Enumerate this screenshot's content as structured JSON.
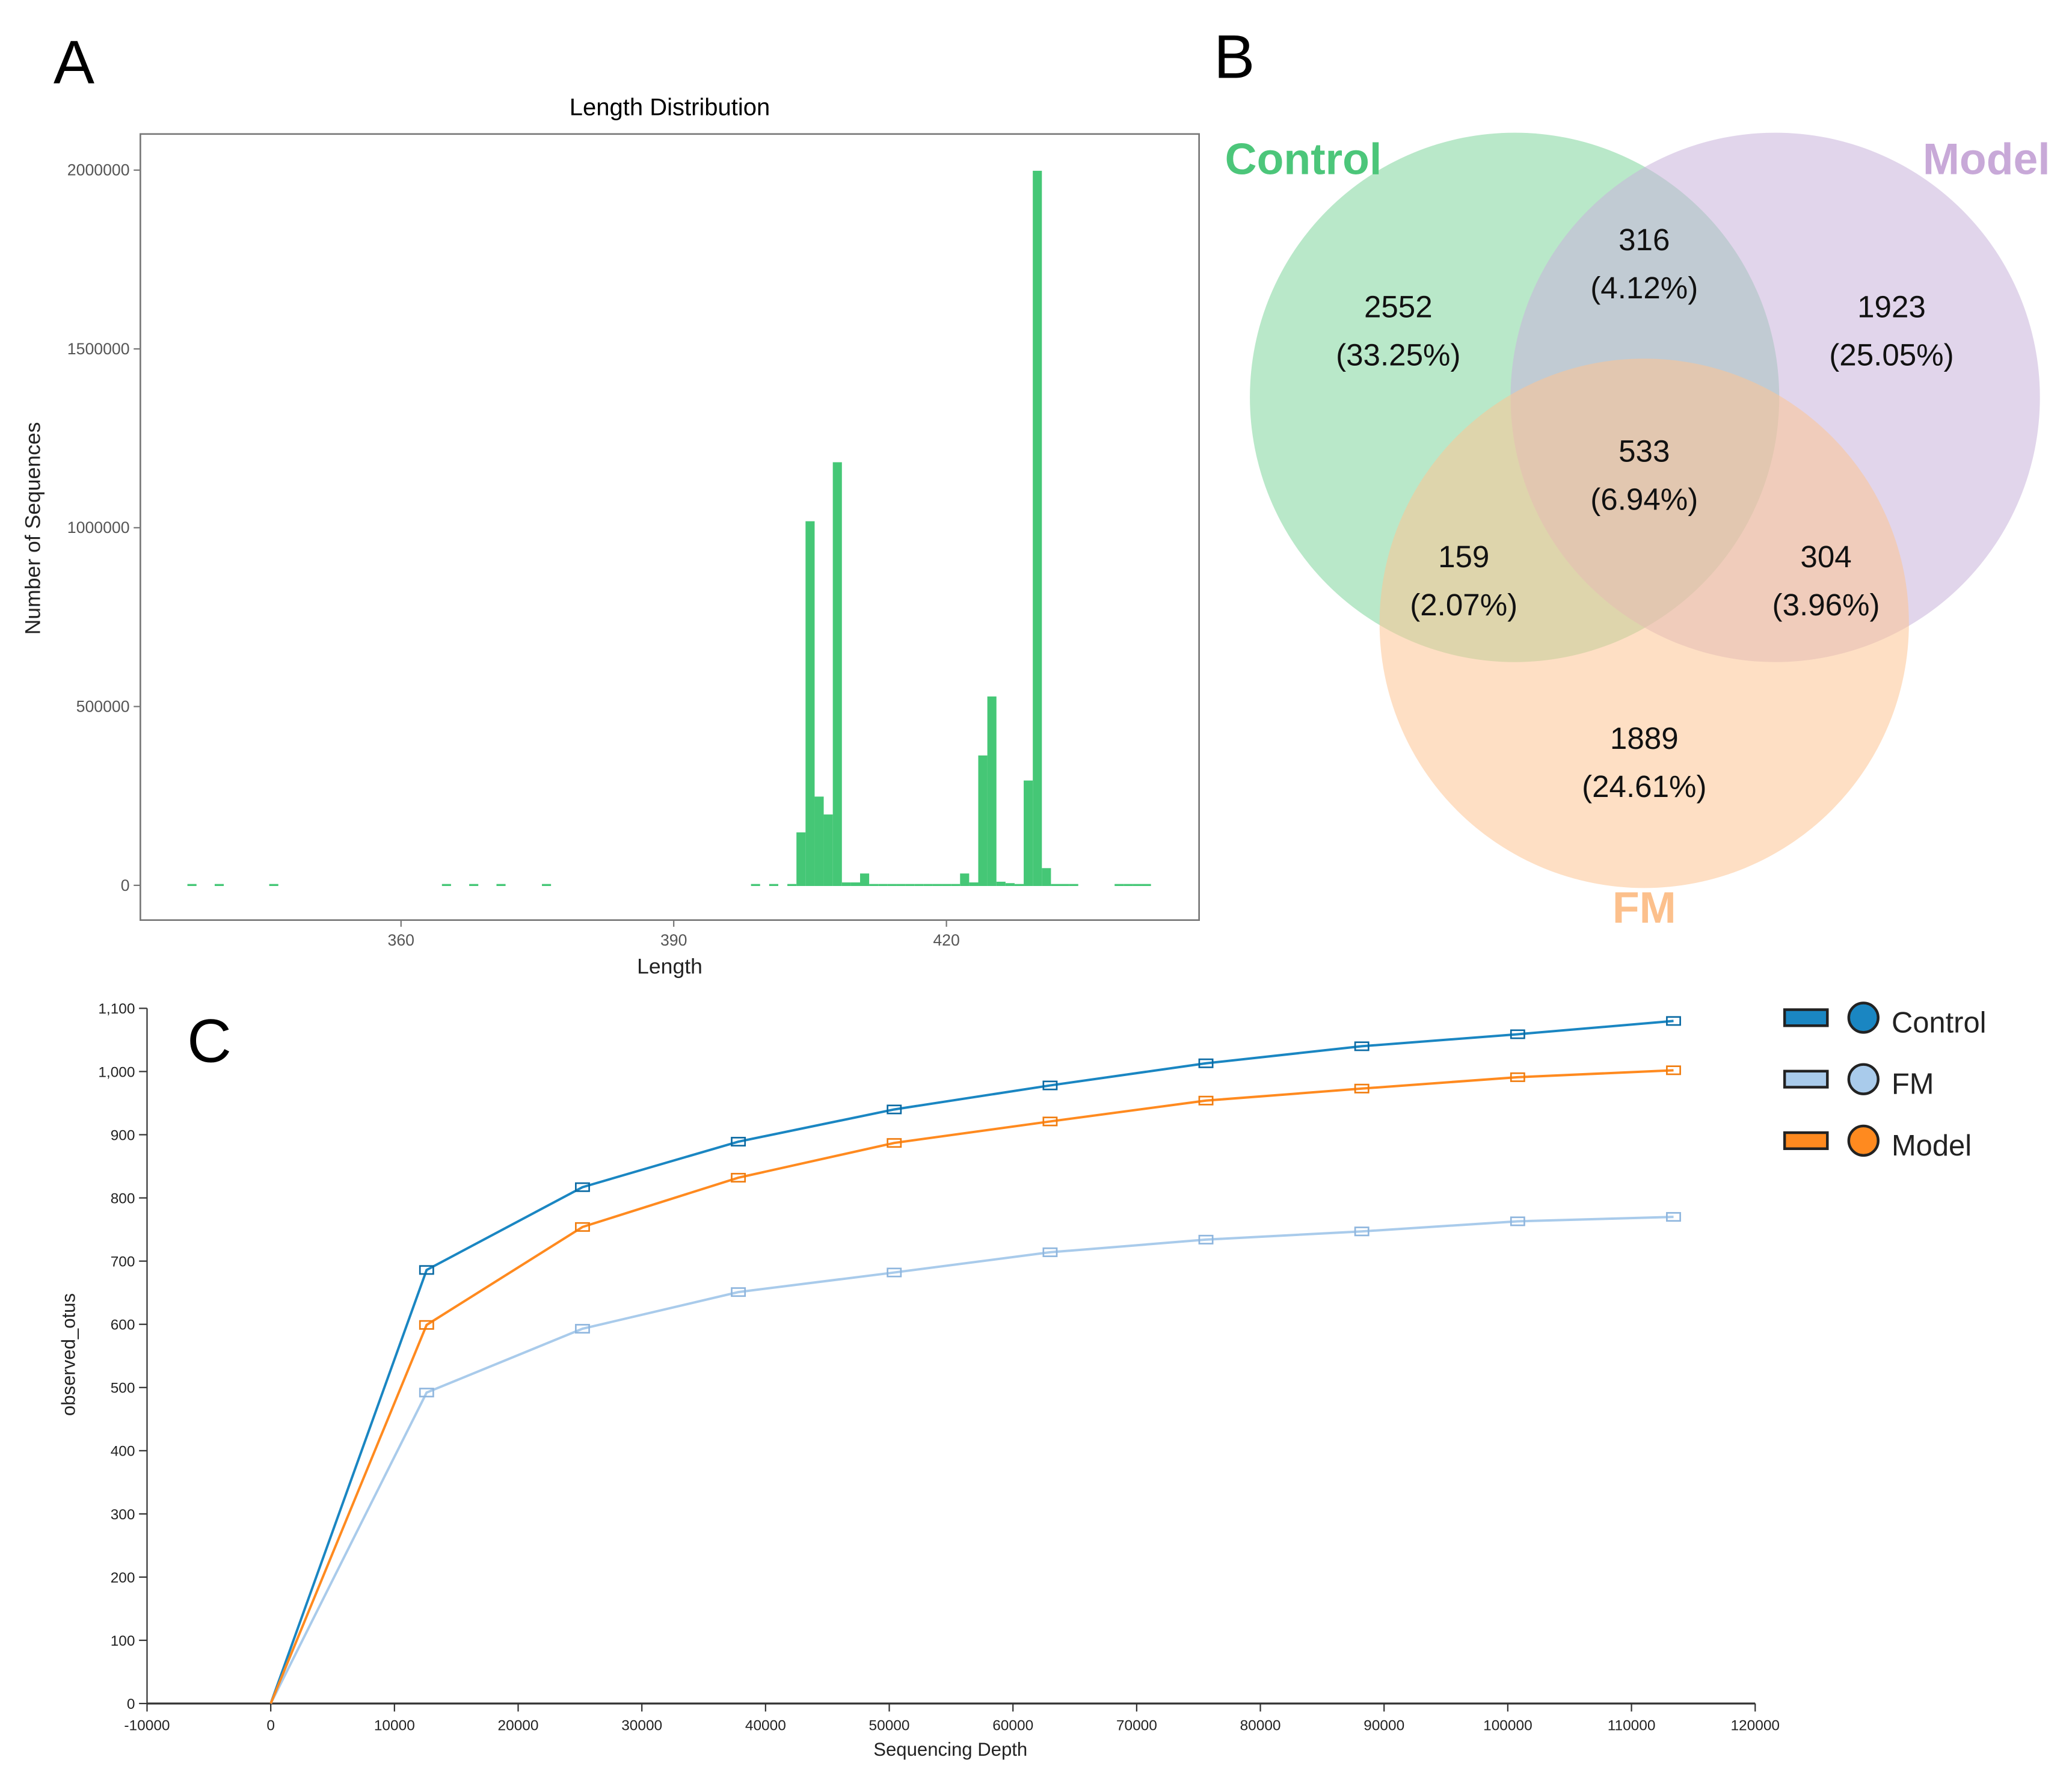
{
  "panels": {
    "a": "A",
    "b": "B",
    "c": "C"
  },
  "chart_data": [
    {
      "type": "bar",
      "title": "Length Distribution",
      "xlabel": "Length",
      "ylabel": "Number of Sequences",
      "xticks": [
        360,
        390,
        420
      ],
      "yticks": [
        0,
        500000,
        1000000,
        1500000,
        2000000
      ],
      "ylim": [
        -100000,
        2100000
      ],
      "xlim": [
        331,
        446
      ],
      "color": "#45c776",
      "bars": [
        [
          337,
          3000
        ],
        [
          340,
          3000
        ],
        [
          346,
          3000
        ],
        [
          365,
          3000
        ],
        [
          368,
          3000
        ],
        [
          371,
          3000
        ],
        [
          376,
          3000
        ],
        [
          399,
          3000
        ],
        [
          401,
          3000
        ],
        [
          403,
          3000
        ],
        [
          404,
          150000
        ],
        [
          405,
          1020000
        ],
        [
          406,
          250000
        ],
        [
          407,
          200000
        ],
        [
          408,
          1185000
        ],
        [
          409,
          10000
        ],
        [
          410,
          10000
        ],
        [
          411,
          35000
        ],
        [
          412,
          4000
        ],
        [
          413,
          3000
        ],
        [
          414,
          5000
        ],
        [
          415,
          5000
        ],
        [
          416,
          3000
        ],
        [
          417,
          3000
        ],
        [
          418,
          3000
        ],
        [
          419,
          3000
        ],
        [
          420,
          4000
        ],
        [
          421,
          5000
        ],
        [
          422,
          35000
        ],
        [
          423,
          10000
        ],
        [
          424,
          365000
        ],
        [
          425,
          530000
        ],
        [
          426,
          12000
        ],
        [
          427,
          8000
        ],
        [
          428,
          3000
        ],
        [
          429,
          295000
        ],
        [
          430,
          2000000
        ],
        [
          431,
          50000
        ],
        [
          432,
          3000
        ],
        [
          433,
          3000
        ],
        [
          434,
          3000
        ],
        [
          439,
          3000
        ],
        [
          440,
          3000
        ],
        [
          441,
          3000
        ],
        [
          442,
          3000
        ]
      ]
    },
    {
      "type": "venn",
      "sets": [
        {
          "name": "Control",
          "color": "#4cc67a",
          "fill": "#7fd59c"
        },
        {
          "name": "Model",
          "color": "#c8a9d8",
          "fill": "#c8b3db"
        },
        {
          "name": "FM",
          "color": "#fcc08c",
          "fill": "#fdc494"
        }
      ],
      "regions": [
        {
          "sets": [
            "Control"
          ],
          "count": "2552",
          "pct": "(33.25%)"
        },
        {
          "sets": [
            "Control",
            "Model"
          ],
          "count": "316",
          "pct": "(4.12%)"
        },
        {
          "sets": [
            "Model"
          ],
          "count": "1923",
          "pct": "(25.05%)"
        },
        {
          "sets": [
            "Control",
            "Model",
            "FM"
          ],
          "count": "533",
          "pct": "(6.94%)"
        },
        {
          "sets": [
            "Control",
            "FM"
          ],
          "count": "159",
          "pct": "(2.07%)"
        },
        {
          "sets": [
            "Model",
            "FM"
          ],
          "count": "304",
          "pct": "(3.96%)"
        },
        {
          "sets": [
            "FM"
          ],
          "count": "1889",
          "pct": "(24.61%)"
        }
      ]
    },
    {
      "type": "line",
      "xlabel": "Sequencing Depth",
      "ylabel": "observed_otus",
      "xlim": [
        -10000,
        120000
      ],
      "ylim": [
        0,
        1100
      ],
      "xticks": [
        "-10000",
        "0",
        "10000",
        "20000",
        "30000",
        "40000",
        "50000",
        "60000",
        "70000",
        "80000",
        "90000",
        "100000",
        "110000",
        "120000"
      ],
      "yticks": [
        "0",
        "100",
        "200",
        "300",
        "400",
        "500",
        "600",
        "700",
        "800",
        "900",
        "1,000",
        "1,100"
      ],
      "x": [
        0,
        12600,
        25200,
        37800,
        50400,
        63000,
        75600,
        88200,
        100800,
        113400
      ],
      "series": [
        {
          "name": "Control",
          "color": "#1a86c2",
          "dark": "#0b6aa3",
          "values": [
            0,
            686,
            817,
            889,
            940,
            978,
            1013,
            1040,
            1059,
            1080
          ]
        },
        {
          "name": "FM",
          "color": "#a9cbeb",
          "dark": "#8fb6de",
          "values": [
            0,
            492,
            593,
            651,
            682,
            714,
            734,
            747,
            763,
            770
          ]
        },
        {
          "name": "Model",
          "color": "#ff8a1f",
          "dark": "#f07d10",
          "values": [
            0,
            599,
            754,
            832,
            887,
            921,
            954,
            973,
            991,
            1002
          ]
        }
      ],
      "legend": "top-right"
    }
  ]
}
